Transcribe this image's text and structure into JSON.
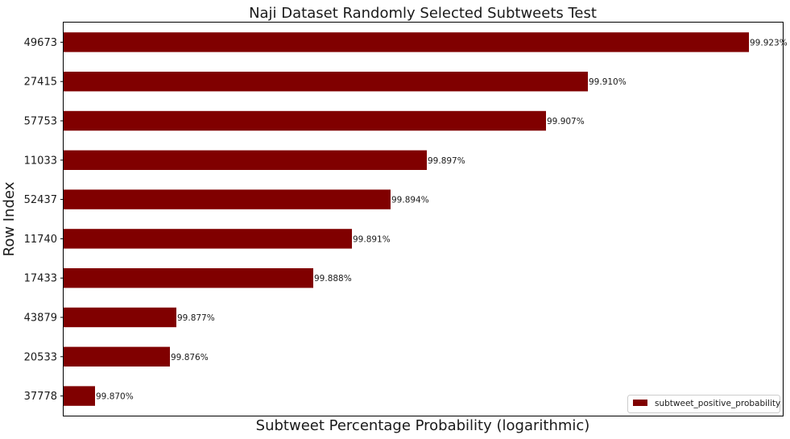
{
  "chart_data": {
    "type": "bar",
    "orientation": "horizontal",
    "title": "Naji Dataset Randomly Selected Subtweets Test",
    "xlabel": "Subtweet Percentage Probability (logarithmic)",
    "ylabel": "Row Index",
    "x_scale": "log",
    "x_ticks_visible": false,
    "grid": false,
    "legend_position": "bottom-right",
    "bar_color": "#800000",
    "categories": [
      "37778",
      "20533",
      "43879",
      "17433",
      "11740",
      "52437",
      "11033",
      "57753",
      "27415",
      "49673"
    ],
    "series": [
      {
        "name": "subtweet_positive_probability",
        "values": [
          99.87,
          99.876,
          99.877,
          99.888,
          99.891,
          99.894,
          99.897,
          99.907,
          99.91,
          99.923
        ],
        "labels": [
          "99.870%",
          "99.876%",
          "99.877%",
          "99.888%",
          "99.891%",
          "99.894%",
          "99.897%",
          "99.907%",
          "99.910%",
          "99.923%"
        ]
      }
    ]
  }
}
